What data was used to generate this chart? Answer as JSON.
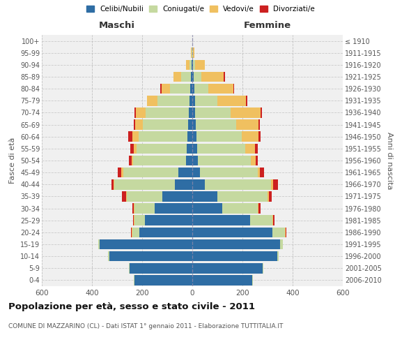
{
  "age_groups": [
    "0-4",
    "5-9",
    "10-14",
    "15-19",
    "20-24",
    "25-29",
    "30-34",
    "35-39",
    "40-44",
    "45-49",
    "50-54",
    "55-59",
    "60-64",
    "65-69",
    "70-74",
    "75-79",
    "80-84",
    "85-89",
    "90-94",
    "95-99",
    "100+"
  ],
  "birth_years": [
    "2006-2010",
    "2001-2005",
    "1996-2000",
    "1991-1995",
    "1986-1990",
    "1981-1985",
    "1976-1980",
    "1971-1975",
    "1966-1970",
    "1961-1965",
    "1956-1960",
    "1951-1955",
    "1946-1950",
    "1941-1945",
    "1936-1940",
    "1931-1935",
    "1926-1930",
    "1921-1925",
    "1916-1920",
    "1911-1915",
    "≤ 1910"
  ],
  "maschi": {
    "celibi": [
      230,
      250,
      330,
      370,
      210,
      190,
      150,
      120,
      70,
      55,
      25,
      22,
      20,
      18,
      15,
      10,
      8,
      5,
      3,
      1,
      0
    ],
    "coniugati": [
      2,
      2,
      5,
      5,
      30,
      40,
      80,
      140,
      240,
      220,
      210,
      200,
      195,
      180,
      170,
      130,
      80,
      40,
      8,
      2,
      1
    ],
    "vedovi": [
      0,
      0,
      0,
      1,
      2,
      3,
      3,
      5,
      5,
      8,
      8,
      10,
      25,
      30,
      40,
      40,
      35,
      30,
      15,
      2,
      0
    ],
    "divorziati": [
      0,
      0,
      0,
      0,
      2,
      3,
      5,
      15,
      8,
      15,
      10,
      15,
      15,
      5,
      5,
      0,
      5,
      0,
      0,
      0,
      0
    ]
  },
  "femmine": {
    "nubili": [
      240,
      280,
      340,
      350,
      320,
      230,
      120,
      100,
      50,
      30,
      22,
      20,
      18,
      15,
      12,
      10,
      8,
      5,
      3,
      1,
      0
    ],
    "coniugate": [
      1,
      2,
      5,
      10,
      50,
      90,
      140,
      200,
      265,
      230,
      210,
      190,
      180,
      160,
      140,
      90,
      55,
      30,
      8,
      2,
      1
    ],
    "vedove": [
      0,
      0,
      0,
      0,
      1,
      2,
      3,
      5,
      8,
      10,
      20,
      40,
      65,
      90,
      120,
      115,
      100,
      90,
      40,
      5,
      0
    ],
    "divorziate": [
      0,
      0,
      0,
      0,
      3,
      5,
      10,
      12,
      18,
      15,
      10,
      10,
      8,
      5,
      5,
      5,
      5,
      5,
      0,
      0,
      0
    ]
  },
  "colors": {
    "celibi": "#2e6da4",
    "coniugati": "#c5d9a0",
    "vedovi": "#f0c060",
    "divorziati": "#cc2020"
  },
  "title": "Popolazione per età, sesso e stato civile - 2011",
  "subtitle": "COMUNE DI MAZZARINO (CL) - Dati ISTAT 1° gennaio 2011 - Elaborazione TUTTITALIA.IT",
  "xlabel_left": "Maschi",
  "xlabel_right": "Femmine",
  "ylabel_left": "Fasce di età",
  "ylabel_right": "Anni di nascita",
  "xlim": 600,
  "bg_color": "#ffffff",
  "plot_bg_color": "#f0f0f0",
  "grid_color": "#bbbbbb"
}
